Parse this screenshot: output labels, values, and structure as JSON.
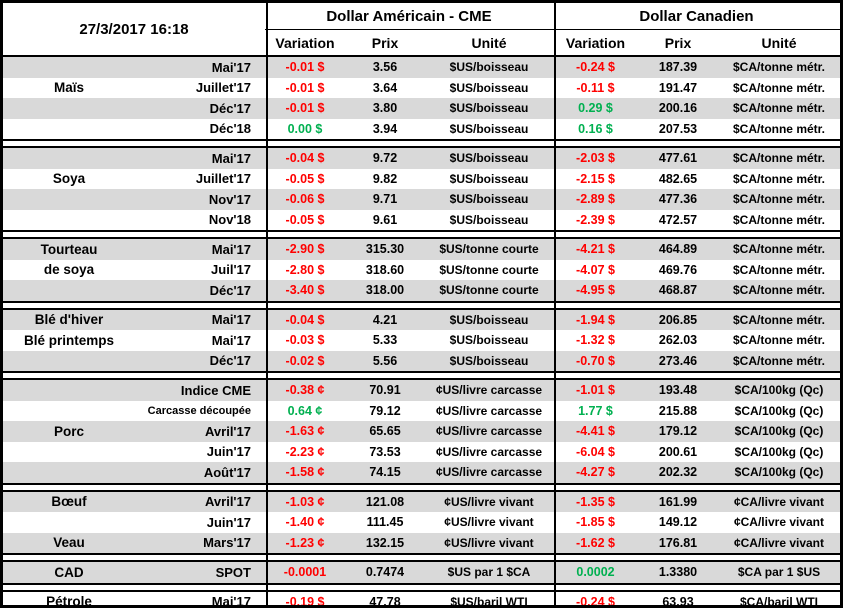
{
  "chart_data": {
    "type": "table",
    "timestamp": "27/3/2017 16:18",
    "us_title": "Dollar Américain - CME",
    "ca_title": "Dollar Canadien",
    "columns": {
      "variation": "Variation",
      "prix": "Prix",
      "unite": "Unité"
    },
    "colors": {
      "negative": "#ff0000",
      "positive": "#00b050",
      "row_shade": "#d9d9d9"
    },
    "groups": [
      {
        "name": "Maïs",
        "rows": [
          {
            "label": "",
            "month": "Mai'17",
            "us_var": "-0.01 $",
            "us_prix": "3.56",
            "us_unit": "$US/boisseau",
            "ca_var": "-0.24 $",
            "ca_prix": "187.39",
            "ca_unit": "$CA/tonne métr."
          },
          {
            "label": "Maïs",
            "month": "Juillet'17",
            "us_var": "-0.01 $",
            "us_prix": "3.64",
            "us_unit": "$US/boisseau",
            "ca_var": "-0.11 $",
            "ca_prix": "191.47",
            "ca_unit": "$CA/tonne métr."
          },
          {
            "label": "",
            "month": "Déc'17",
            "us_var": "-0.01 $",
            "us_prix": "3.80",
            "us_unit": "$US/boisseau",
            "ca_var": "0.29 $",
            "ca_prix": "200.16",
            "ca_unit": "$CA/tonne métr."
          },
          {
            "label": "",
            "month": "Déc'18",
            "us_var": "0.00 $",
            "us_prix": "3.94",
            "us_unit": "$US/boisseau",
            "ca_var": "0.16 $",
            "ca_prix": "207.53",
            "ca_unit": "$CA/tonne métr."
          }
        ]
      },
      {
        "name": "Soya",
        "rows": [
          {
            "label": "",
            "month": "Mai'17",
            "us_var": "-0.04 $",
            "us_prix": "9.72",
            "us_unit": "$US/boisseau",
            "ca_var": "-2.03 $",
            "ca_prix": "477.61",
            "ca_unit": "$CA/tonne métr."
          },
          {
            "label": "Soya",
            "month": "Juillet'17",
            "us_var": "-0.05 $",
            "us_prix": "9.82",
            "us_unit": "$US/boisseau",
            "ca_var": "-2.15 $",
            "ca_prix": "482.65",
            "ca_unit": "$CA/tonne métr."
          },
          {
            "label": "",
            "month": "Nov'17",
            "us_var": "-0.06 $",
            "us_prix": "9.71",
            "us_unit": "$US/boisseau",
            "ca_var": "-2.89 $",
            "ca_prix": "477.36",
            "ca_unit": "$CA/tonne métr."
          },
          {
            "label": "",
            "month": "Nov'18",
            "us_var": "-0.05 $",
            "us_prix": "9.61",
            "us_unit": "$US/boisseau",
            "ca_var": "-2.39 $",
            "ca_prix": "472.57",
            "ca_unit": "$CA/tonne métr."
          }
        ]
      },
      {
        "name": "Tourteau de soya",
        "rows": [
          {
            "label": "Tourteau",
            "month": "Mai'17",
            "us_var": "-2.90 $",
            "us_prix": "315.30",
            "us_unit": "$US/tonne courte",
            "ca_var": "-4.21 $",
            "ca_prix": "464.89",
            "ca_unit": "$CA/tonne métr."
          },
          {
            "label": "de soya",
            "month": "Juil'17",
            "us_var": "-2.80 $",
            "us_prix": "318.60",
            "us_unit": "$US/tonne courte",
            "ca_var": "-4.07 $",
            "ca_prix": "469.76",
            "ca_unit": "$CA/tonne métr."
          },
          {
            "label": "",
            "month": "Déc'17",
            "us_var": "-3.40 $",
            "us_prix": "318.00",
            "us_unit": "$US/tonne courte",
            "ca_var": "-4.95 $",
            "ca_prix": "468.87",
            "ca_unit": "$CA/tonne métr."
          }
        ]
      },
      {
        "name": "Blé",
        "rows": [
          {
            "label": "Blé d'hiver",
            "month": "Mai'17",
            "us_var": "-0.04 $",
            "us_prix": "4.21",
            "us_unit": "$US/boisseau",
            "ca_var": "-1.94 $",
            "ca_prix": "206.85",
            "ca_unit": "$CA/tonne métr."
          },
          {
            "label": "Blé printemps",
            "month": "Mai'17",
            "us_var": "-0.03 $",
            "us_prix": "5.33",
            "us_unit": "$US/boisseau",
            "ca_var": "-1.32 $",
            "ca_prix": "262.03",
            "ca_unit": "$CA/tonne métr."
          },
          {
            "label": "",
            "month": "Déc'17",
            "us_var": "-0.02 $",
            "us_prix": "5.56",
            "us_unit": "$US/boisseau",
            "ca_var": "-0.70 $",
            "ca_prix": "273.46",
            "ca_unit": "$CA/tonne métr."
          }
        ]
      },
      {
        "name": "Porc",
        "rows": [
          {
            "label": "",
            "month": "Indice CME",
            "us_var": "-0.38 ¢",
            "us_prix": "70.91",
            "us_unit": "¢US/livre carcasse",
            "ca_var": "-1.01 $",
            "ca_prix": "193.48",
            "ca_unit": "$CA/100kg (Qc)"
          },
          {
            "label": "",
            "month": "Carcasse découpée",
            "us_var": "0.64 ¢",
            "us_prix": "79.12",
            "us_unit": "¢US/livre carcasse",
            "ca_var": "1.77 $",
            "ca_prix": "215.88",
            "ca_unit": "$CA/100kg (Qc)"
          },
          {
            "label": "Porc",
            "month": "Avril'17",
            "us_var": "-1.63 ¢",
            "us_prix": "65.65",
            "us_unit": "¢US/livre carcasse",
            "ca_var": "-4.41 $",
            "ca_prix": "179.12",
            "ca_unit": "$CA/100kg (Qc)"
          },
          {
            "label": "",
            "month": "Juin'17",
            "us_var": "-2.23 ¢",
            "us_prix": "73.53",
            "us_unit": "¢US/livre carcasse",
            "ca_var": "-6.04 $",
            "ca_prix": "200.61",
            "ca_unit": "$CA/100kg (Qc)"
          },
          {
            "label": "",
            "month": "Août'17",
            "us_var": "-1.58 ¢",
            "us_prix": "74.15",
            "us_unit": "¢US/livre carcasse",
            "ca_var": "-4.27 $",
            "ca_prix": "202.32",
            "ca_unit": "$CA/100kg (Qc)"
          }
        ]
      },
      {
        "name": "Bœuf / Veau",
        "rows": [
          {
            "label": "Bœuf",
            "month": "Avril'17",
            "us_var": "-1.03 ¢",
            "us_prix": "121.08",
            "us_unit": "¢US/livre vivant",
            "ca_var": "-1.35 $",
            "ca_prix": "161.99",
            "ca_unit": "¢CA/livre vivant"
          },
          {
            "label": "",
            "month": "Juin'17",
            "us_var": "-1.40 ¢",
            "us_prix": "111.45",
            "us_unit": "¢US/livre vivant",
            "ca_var": "-1.85 $",
            "ca_prix": "149.12",
            "ca_unit": "¢CA/livre vivant"
          },
          {
            "label": "Veau",
            "month": "Mars'17",
            "us_var": "-1.23 ¢",
            "us_prix": "132.15",
            "us_unit": "¢US/livre vivant",
            "ca_var": "-1.62 $",
            "ca_prix": "176.81",
            "ca_unit": "¢CA/livre vivant"
          }
        ]
      },
      {
        "name": "CAD",
        "rows": [
          {
            "label": "CAD",
            "month": "SPOT",
            "us_var": "-0.0001",
            "us_prix": "0.7474",
            "us_unit": "$US par 1 $CA",
            "ca_var": "0.0002",
            "ca_prix": "1.3380",
            "ca_unit": "$CA par 1 $US"
          }
        ]
      },
      {
        "name": "Pétrole",
        "stripe_start": "white",
        "rows": [
          {
            "label": "Pétrole",
            "month": "Mai'17",
            "us_var": "-0.19 $",
            "us_prix": "47.78",
            "us_unit": "$US/baril WTI",
            "ca_var": "-0.24 $",
            "ca_prix": "63.93",
            "ca_unit": "$CA/baril WTI"
          }
        ]
      }
    ]
  }
}
